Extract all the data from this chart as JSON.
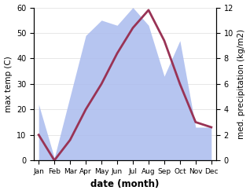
{
  "months": [
    "Jan",
    "Feb",
    "Mar",
    "Apr",
    "May",
    "Jun",
    "Jul",
    "Aug",
    "Sep",
    "Oct",
    "Nov",
    "Dec"
  ],
  "max_temp": [
    10,
    0,
    8,
    20,
    30,
    42,
    52,
    59,
    47,
    30,
    15,
    13
  ],
  "precipitation": [
    4.4,
    0.2,
    5.0,
    9.8,
    11.0,
    10.6,
    12.0,
    10.6,
    6.6,
    9.4,
    2.6,
    2.6
  ],
  "temp_color": "#993355",
  "precip_color": "#aabbee",
  "left_ylabel": "max temp (C)",
  "right_ylabel": "med. precipitation (kg/m2)",
  "xlabel": "date (month)",
  "ylim_left": [
    0,
    60
  ],
  "ylim_right": [
    0,
    12
  ],
  "left_yticks": [
    0,
    10,
    20,
    30,
    40,
    50,
    60
  ],
  "right_yticks": [
    0,
    2,
    4,
    6,
    8,
    10,
    12
  ],
  "bg_color": "#ffffff"
}
